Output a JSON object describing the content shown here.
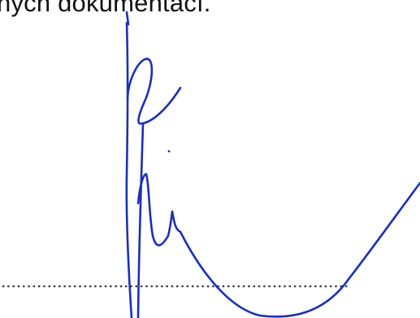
{
  "document": {
    "text_fragment": "ných dokumentací.",
    "colors": {
      "text": "#111111",
      "signature_ink": "#1c2fb8",
      "dotted_line": "#3a3a3a"
    },
    "signature": {
      "type": "handwritten-signature",
      "present": true
    }
  }
}
